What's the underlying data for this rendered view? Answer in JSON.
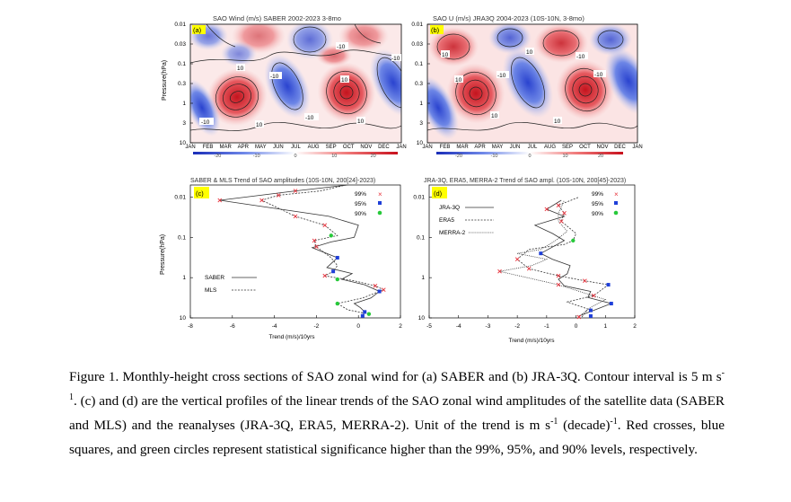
{
  "panels": {
    "a": {
      "title": "SAO Wind (m/s) SABER 2002-2023 3-8mo",
      "tag": "(a)",
      "ylabel": "Pressure(hPa)",
      "yticks": [
        "0.01",
        "0.03",
        "0.1",
        "0.3",
        "1",
        "3",
        "10"
      ],
      "xticks": [
        "JAN",
        "FEB",
        "MAR",
        "APR",
        "MAY",
        "JUN",
        "JUL",
        "AUG",
        "SEP",
        "OCT",
        "NOV",
        "DEC",
        "JAN"
      ],
      "colorbar_ticks": [
        "-20",
        "-10",
        "0",
        "10",
        "20"
      ],
      "contour_labels": [
        "-10",
        "-10",
        "-10",
        "-10",
        "10",
        "10",
        "10",
        "-10",
        "10",
        "-10",
        "10"
      ]
    },
    "b": {
      "title": "SAO U (m/s) JRA3Q 2004-2023 (10S-10N, 3-8mo)",
      "tag": "(b)",
      "ylabel": "Pressure(hPa)",
      "yticks": [
        "0.01",
        "0.03",
        "0.1",
        "0.3",
        "1",
        "3",
        "10"
      ],
      "xticks": [
        "JAN",
        "FEB",
        "MAR",
        "APR",
        "MAY",
        "JUN",
        "JUL",
        "AUG",
        "SEP",
        "OCT",
        "NOV",
        "DEC",
        "JAN"
      ],
      "colorbar_ticks": [
        "-20",
        "-10",
        "0",
        "10",
        "20"
      ],
      "contour_labels": [
        "10",
        "-10",
        "-10",
        "10",
        "-10",
        "10",
        "10",
        "10"
      ]
    },
    "c": {
      "title": "SABER & MLS Trend of SAO amplitudes (10S-10N, 200[24]-2023)",
      "tag": "(c)",
      "ylabel": "Pressure(hPa)",
      "xlabel": "Trend (m/s)/10yrs",
      "yticks": [
        "0.01",
        "0.1",
        "1",
        "10"
      ],
      "xticks": [
        "-8",
        "-6",
        "-4",
        "-2",
        "0",
        "2"
      ],
      "significance_legend": [
        "99%",
        "95%",
        "90%"
      ],
      "line_legend": [
        "SABER",
        "MLS"
      ]
    },
    "d": {
      "title": "JRA-3Q, ERA5, MERRA-2 Trend of SAO ampl. (10S-10N, 200[45]-2023)",
      "tag": "(d)",
      "ylabel": "Pressure(hPa)",
      "xlabel": "Trend (m/s)/10yrs",
      "yticks": [
        "0.01",
        "0.1",
        "1",
        "10"
      ],
      "xticks": [
        "-5",
        "-4",
        "-3",
        "-2",
        "-1",
        "0",
        "1",
        "2"
      ],
      "significance_legend": [
        "99%",
        "95%",
        "90%"
      ],
      "line_legend": [
        "JRA-3Q",
        "ERA5",
        "MERRA-2"
      ]
    }
  },
  "colors": {
    "sig99": "#e8323c",
    "sig95": "#1f3fd8",
    "sig90": "#27c93a",
    "tag_bg": "#ffff00"
  },
  "chart_data": [
    {
      "type": "line",
      "panel": "c",
      "x_unit": "Trend (m/s)/10yrs",
      "y_scale": "log-pressure",
      "xlim": [
        -8,
        2
      ],
      "ylim": [
        10,
        0.005
      ],
      "series": [
        {
          "name": "SABER",
          "x": [
            0.2,
            0.3,
            0.1,
            -0.2,
            0.6,
            1.0,
            0.3,
            -0.8,
            -0.3,
            -1.5,
            -1.0,
            -2.2,
            -1.3,
            -0.2,
            0.0,
            -1.4,
            -6.6,
            -3.0,
            -0.5
          ],
          "y": [
            8.9,
            7.1,
            5.6,
            4.4,
            3.2,
            2.2,
            1.5,
            1.1,
            0.79,
            0.56,
            0.32,
            0.18,
            0.13,
            0.1,
            0.05,
            0.03,
            0.012,
            0.007,
            0.005
          ]
        },
        {
          "name": "MLS",
          "x": [
            0.5,
            -0.5,
            -1.0,
            0.2,
            1.2,
            0.8,
            -0.2,
            -1.6,
            -1.2,
            -1.0,
            -1.3,
            -2.0,
            -2.1,
            -1.0,
            -1.6,
            -3.0,
            -4.6,
            -3.8,
            -1.8,
            -0.6
          ],
          "y": [
            8.0,
            6.3,
            4.4,
            3.2,
            2.0,
            1.6,
            1.2,
            0.9,
            0.7,
            0.5,
            0.32,
            0.17,
            0.12,
            0.09,
            0.05,
            0.03,
            0.012,
            0.009,
            0.007,
            0.005
          ]
        }
      ],
      "significance": [
        {
          "level": "99%",
          "x": 1.2,
          "y": 2.0
        },
        {
          "level": "99%",
          "x": 0.8,
          "y": 1.6
        },
        {
          "level": "99%",
          "x": -1.6,
          "y": 0.9
        },
        {
          "level": "99%",
          "x": -2.0,
          "y": 0.17
        },
        {
          "level": "99%",
          "x": -2.1,
          "y": 0.12
        },
        {
          "level": "99%",
          "x": -1.6,
          "y": 0.05
        },
        {
          "level": "99%",
          "x": -3.0,
          "y": 0.03
        },
        {
          "level": "99%",
          "x": -4.6,
          "y": 0.012
        },
        {
          "level": "99%",
          "x": -3.8,
          "y": 0.009
        },
        {
          "level": "99%",
          "x": -6.6,
          "y": 0.012
        },
        {
          "level": "99%",
          "x": -3.0,
          "y": 0.007
        },
        {
          "level": "95%",
          "x": 0.2,
          "y": 8.9
        },
        {
          "level": "95%",
          "x": 0.3,
          "y": 7.1
        },
        {
          "level": "95%",
          "x": 1.0,
          "y": 2.2
        },
        {
          "level": "95%",
          "x": -1.0,
          "y": 0.32
        },
        {
          "level": "95%",
          "x": -1.2,
          "y": 0.7
        },
        {
          "level": "90%",
          "x": 0.5,
          "y": 8.0
        },
        {
          "level": "90%",
          "x": -1.0,
          "y": 4.4
        },
        {
          "level": "90%",
          "x": -1.3,
          "y": 0.09
        },
        {
          "level": "90%",
          "x": -1.0,
          "y": 1.1
        }
      ]
    },
    {
      "type": "line",
      "panel": "d",
      "x_unit": "Trend (m/s)/10yrs",
      "y_scale": "log-pressure",
      "xlim": [
        -5,
        2
      ],
      "ylim": [
        10,
        0.005
      ],
      "series": [
        {
          "name": "JRA-3Q",
          "x": [
            0.1,
            0.6,
            1.2,
            0.4,
            0.5,
            -0.4,
            -0.6,
            -0.3,
            -0.2,
            -0.8,
            -1.2,
            -0.4,
            -0.8,
            -1.4,
            -0.4,
            -1.0,
            -0.5
          ],
          "y": [
            9.0,
            6.5,
            4.4,
            3.1,
            2.2,
            1.6,
            1.1,
            0.8,
            0.5,
            0.35,
            0.25,
            0.12,
            0.08,
            0.05,
            0.03,
            0.02,
            0.012
          ]
        },
        {
          "name": "ERA5",
          "x": [
            0.2,
            0.4,
            -0.3,
            0.6,
            1.1,
            0.3,
            -0.6,
            -1.6,
            -2.0,
            -1.6,
            -0.4,
            -0.1,
            0.0,
            -0.5,
            -0.4,
            -0.6,
            0.1
          ],
          "y": [
            9.5,
            6.0,
            4.0,
            2.8,
            1.5,
            1.2,
            0.9,
            0.6,
            0.35,
            0.2,
            0.15,
            0.12,
            0.08,
            0.04,
            0.025,
            0.016,
            0.01
          ]
        },
        {
          "name": "MERRA-2",
          "x": [
            0.2,
            0.5,
            1.0,
            -0.6,
            -2.6,
            -1.5,
            -1.0,
            -2.0,
            -1.2,
            -0.7,
            -0.3,
            -0.6,
            -0.6,
            -0.4
          ],
          "y": [
            8.0,
            5.5,
            3.5,
            1.5,
            0.7,
            0.5,
            0.35,
            0.25,
            0.2,
            0.12,
            0.07,
            0.04,
            0.025,
            0.012
          ]
        }
      ],
      "significance": [
        {
          "level": "99%",
          "x": -2.6,
          "y": 0.7
        },
        {
          "level": "99%",
          "x": -2.0,
          "y": 0.35
        },
        {
          "level": "99%",
          "x": -1.6,
          "y": 0.6
        },
        {
          "level": "99%",
          "x": -0.6,
          "y": 0.9
        },
        {
          "level": "99%",
          "x": 0.3,
          "y": 1.2
        },
        {
          "level": "99%",
          "x": 0.6,
          "y": 2.8
        },
        {
          "level": "99%",
          "x": 0.1,
          "y": 9.5
        },
        {
          "level": "99%",
          "x": -0.6,
          "y": 0.016
        },
        {
          "level": "99%",
          "x": -0.4,
          "y": 0.025
        },
        {
          "level": "99%",
          "x": -0.5,
          "y": 0.04
        },
        {
          "level": "99%",
          "x": -1.0,
          "y": 0.02
        },
        {
          "level": "99%",
          "x": -0.6,
          "y": 1.5
        },
        {
          "level": "95%",
          "x": 1.2,
          "y": 4.4
        },
        {
          "level": "95%",
          "x": 0.5,
          "y": 6.5
        },
        {
          "level": "95%",
          "x": 0.5,
          "y": 9.0
        },
        {
          "level": "95%",
          "x": -1.2,
          "y": 0.25
        },
        {
          "level": "95%",
          "x": 1.1,
          "y": 1.5
        },
        {
          "level": "90%",
          "x": -0.1,
          "y": 0.12
        }
      ]
    }
  ],
  "caption": {
    "text_1": "Figure 1. Monthly-height cross sections of SAO zonal wind for (a) SABER and (b) JRA-3Q. Contour interval is 5 m s",
    "sup_1": "-1",
    "text_2": ". (c) and (d) are the vertical profiles of the linear trends of the SAO zonal wind amplitudes of the satellite data (SABER and MLS) and the reanalyses (JRA-3Q, ERA5, MERRA-2). Unit of the trend is m s",
    "sup_2": "-1",
    "text_3": " (decade)",
    "sup_3": "-1",
    "text_4": ". Red crosses, blue squares, and green circles represent statistical significance higher than the 99%, 95%, and 90% levels, respectively."
  }
}
